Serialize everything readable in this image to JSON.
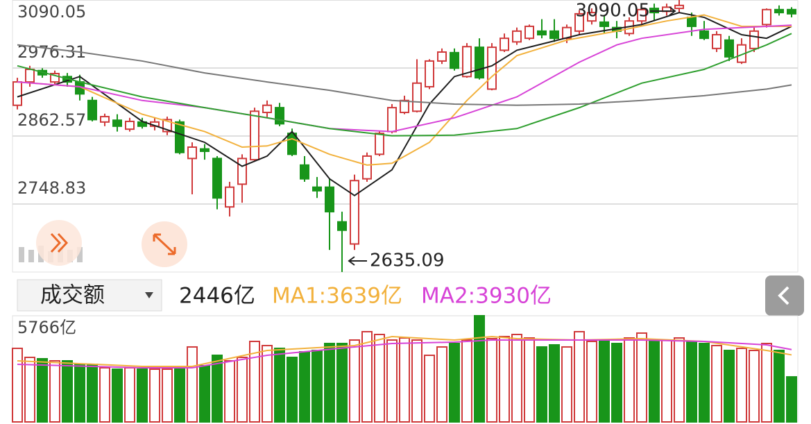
{
  "chart_data": [
    {
      "type": "candlestick",
      "ylim": [
        2635.09,
        3090.05
      ],
      "yticks": [
        3090.05,
        2976.31,
        2862.57,
        2748.83
      ],
      "grid": true,
      "up_color": "#d0393a",
      "down_color": "#18951a",
      "open": [
        2914,
        2953,
        2972,
        2953,
        2962,
        2953,
        2922,
        2886,
        2889,
        2874,
        2886,
        2879,
        2870,
        2886,
        2825,
        2841,
        2825,
        2744,
        2782,
        2823,
        2902,
        2910,
        2867,
        2814,
        2777,
        2777,
        2719,
        2682,
        2791,
        2832,
        2870,
        2902,
        2904,
        2945,
        2988,
        3002,
        2962,
        3011,
        2941,
        3006,
        3020,
        3026,
        3038,
        3038,
        3026,
        3038,
        3055,
        3053,
        3044,
        3034,
        3055,
        3076,
        3071,
        3076,
        3061,
        3038,
        3009,
        3023,
        2986,
        3009,
        3049,
        3074,
        3074
      ],
      "close": [
        2953,
        2974,
        2965,
        2967,
        2953,
        2933,
        2890,
        2895,
        2879,
        2887,
        2879,
        2886,
        2890,
        2835,
        2844,
        2837,
        2759,
        2777,
        2825,
        2904,
        2914,
        2883,
        2832,
        2791,
        2771,
        2736,
        2705,
        2788,
        2829,
        2867,
        2910,
        2922,
        2951,
        2988,
        3003,
        2976,
        3012,
        2960,
        3011,
        3026,
        3038,
        3046,
        3032,
        3026,
        3044,
        3067,
        3069,
        3046,
        3038,
        3055,
        3074,
        3069,
        3078,
        3081,
        3046,
        3026,
        3032,
        2995,
        3015,
        3038,
        3074,
        3069,
        3067
      ],
      "high": [
        2960,
        2980,
        2976,
        2972,
        2968,
        2965,
        2928,
        2900,
        2899,
        2893,
        2893,
        2893,
        2895,
        2890,
        2852,
        2849,
        2829,
        2786,
        2832,
        2910,
        2922,
        2918,
        2875,
        2829,
        2794,
        2791,
        2736,
        2798,
        2835,
        2870,
        2916,
        2930,
        2991,
        2991,
        3009,
        3009,
        3018,
        3026,
        3018,
        3034,
        3044,
        3049,
        3058,
        3058,
        3049,
        3073,
        3076,
        3064,
        3055,
        3061,
        3078,
        3084,
        3084,
        3090.05,
        3069,
        3055,
        3038,
        3030,
        3026,
        3044,
        3076,
        3081,
        3078
      ],
      "low": [
        2907,
        2945,
        2960,
        2948,
        2945,
        2922,
        2887,
        2879,
        2870,
        2870,
        2875,
        2872,
        2864,
        2832,
        2765,
        2823,
        2740,
        2728,
        2751,
        2821,
        2893,
        2879,
        2829,
        2786,
        2759,
        2672,
        2635.09,
        2672,
        2786,
        2829,
        2867,
        2899,
        2902,
        2941,
        2983,
        2972,
        2960,
        2957,
        2939,
        3003,
        3015,
        3023,
        3026,
        3020,
        3018,
        3032,
        3049,
        3034,
        3026,
        3030,
        3049,
        3055,
        3064,
        3069,
        3030,
        3023,
        3003,
        2988,
        2983,
        3003,
        3044,
        3064,
        3061
      ],
      "series": [
        {
          "color": "#1e1e1e",
          "x": [
            0,
            5,
            10,
            15,
            18,
            20,
            22,
            25,
            27,
            30,
            33,
            35,
            38,
            40,
            45,
            50,
            53,
            55,
            58,
            60,
            62
          ],
          "values": [
            2928,
            2962,
            2887,
            2852,
            2812,
            2829,
            2870,
            2791,
            2763,
            2806,
            2916,
            2962,
            2980,
            3006,
            3032,
            3049,
            3069,
            3061,
            3032,
            3026,
            3046
          ]
        },
        {
          "color": "#f2b13c",
          "x": [
            0,
            5,
            10,
            15,
            18,
            20,
            22,
            25,
            28,
            30,
            33,
            36,
            38,
            40,
            44,
            48,
            52,
            55,
            58,
            62
          ],
          "values": [
            2953,
            2945,
            2899,
            2870,
            2844,
            2846,
            2858,
            2832,
            2814,
            2817,
            2852,
            2922,
            2962,
            2997,
            3023,
            3038,
            3055,
            3065,
            3046,
            3046
          ]
        },
        {
          "color": "#d743d7",
          "x": [
            0,
            5,
            10,
            15,
            20,
            25,
            30,
            35,
            40,
            45,
            48,
            50,
            55,
            60,
            62
          ],
          "values": [
            2953,
            2945,
            2922,
            2910,
            2893,
            2875,
            2870,
            2893,
            2928,
            2986,
            3015,
            3026,
            3041,
            3046,
            3048
          ]
        },
        {
          "color": "#2f9f2f",
          "x": [
            0,
            5,
            10,
            15,
            20,
            25,
            30,
            35,
            40,
            45,
            50,
            55,
            60,
            62
          ],
          "values": [
            2980,
            2953,
            2928,
            2910,
            2893,
            2875,
            2863,
            2864,
            2875,
            2910,
            2951,
            2974,
            3015,
            3034
          ]
        },
        {
          "color": "#777777",
          "x": [
            0,
            5,
            10,
            15,
            20,
            25,
            30,
            35,
            40,
            45,
            50,
            55,
            60,
            62
          ],
          "values": [
            3015,
            3003,
            2988,
            2968,
            2953,
            2939,
            2922,
            2916,
            2914,
            2916,
            2922,
            2930,
            2941,
            2948
          ]
        }
      ],
      "annotations": [
        3090.05,
        2635.09
      ]
    },
    {
      "type": "bar",
      "ylim": [
        0,
        5766
      ],
      "yticks": [
        {
          "value": 5766,
          "label": "5766亿"
        }
      ],
      "values": [
        3995,
        3505,
        3430,
        3317,
        3317,
        3128,
        3128,
        2940,
        2864,
        2940,
        2864,
        2864,
        2864,
        2864,
        4071,
        3053,
        3618,
        3317,
        3505,
        4372,
        4146,
        3995,
        3505,
        3807,
        3882,
        4259,
        4259,
        4447,
        4900,
        4749,
        4447,
        4560,
        4447,
        3618,
        4071,
        4259,
        4447,
        5766,
        4523,
        4636,
        4749,
        4560,
        4071,
        4184,
        4071,
        4900,
        4372,
        4372,
        4259,
        4560,
        4824,
        4447,
        4447,
        4560,
        4372,
        4259,
        4146,
        3882,
        3995,
        3882,
        4259,
        3882,
        2446
      ],
      "series": [
        {
          "color": "#f2b13c",
          "x": [
            0,
            10,
            14,
            20,
            27,
            30,
            35,
            38,
            40,
            45,
            50,
            55,
            60,
            62
          ],
          "values": [
            3317,
            3015,
            3015,
            3882,
            4146,
            4636,
            4447,
            4636,
            4523,
            4447,
            4523,
            4372,
            3882,
            3639
          ]
        },
        {
          "color": "#d743d7",
          "x": [
            0,
            10,
            14,
            20,
            27,
            30,
            35,
            38,
            40,
            45,
            50,
            55,
            60,
            62
          ],
          "values": [
            3128,
            2940,
            2940,
            3618,
            4071,
            4259,
            4334,
            4447,
            4447,
            4447,
            4447,
            4372,
            4184,
            3930
          ]
        }
      ]
    }
  ],
  "controls": {
    "dropdown": "成交额",
    "volume": "2446亿",
    "ma1": "MA1:3639亿",
    "ma2": "MA2:3930亿"
  }
}
